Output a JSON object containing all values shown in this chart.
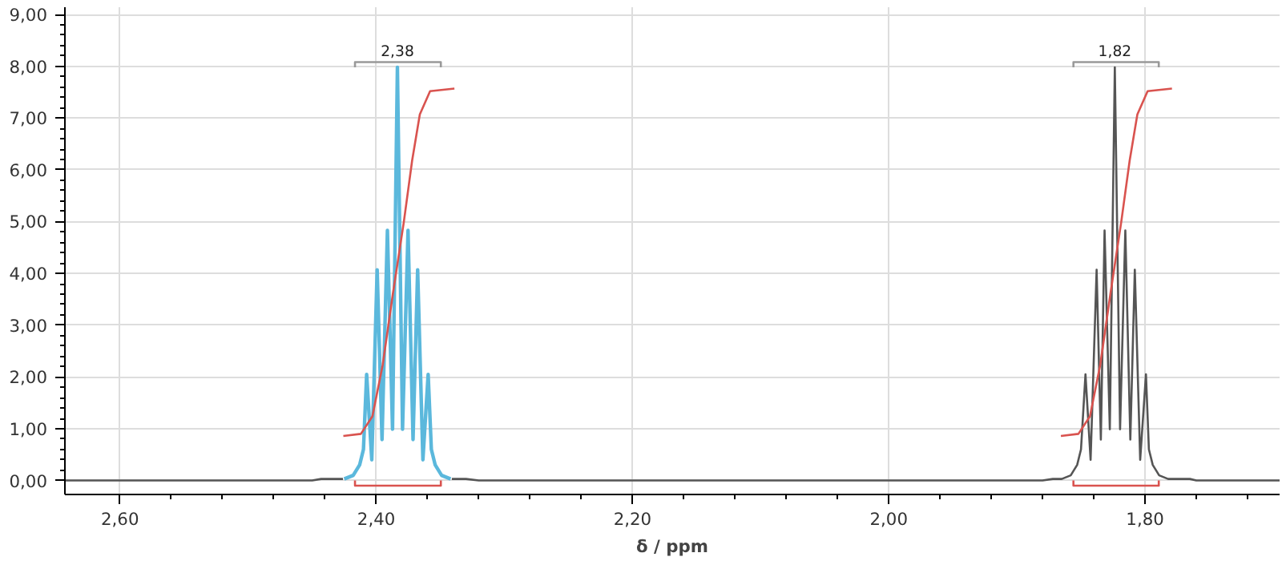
{
  "chart_data": {
    "type": "line",
    "xlabel": "δ / ppm",
    "xlim": [
      2.643,
      1.695
    ],
    "ylim": [
      -0.27,
      9.14
    ],
    "xticks": [
      {
        "value": 2.6,
        "label": "2,60"
      },
      {
        "value": 2.56,
        "label": null
      },
      {
        "value": 2.52,
        "label": null
      },
      {
        "value": 2.48,
        "label": null
      },
      {
        "value": 2.44,
        "label": null
      },
      {
        "value": 2.4,
        "label": "2,40"
      },
      {
        "value": 2.36,
        "label": null
      },
      {
        "value": 2.32,
        "label": null
      },
      {
        "value": 2.28,
        "label": null
      },
      {
        "value": 2.24,
        "label": null
      },
      {
        "value": 2.2,
        "label": "2,20"
      },
      {
        "value": 2.16,
        "label": null
      },
      {
        "value": 2.12,
        "label": null
      },
      {
        "value": 2.08,
        "label": null
      },
      {
        "value": 2.04,
        "label": null
      },
      {
        "value": 2.0,
        "label": "2,00"
      },
      {
        "value": 1.96,
        "label": null
      },
      {
        "value": 1.92,
        "label": null
      },
      {
        "value": 1.88,
        "label": null
      },
      {
        "value": 1.84,
        "label": null
      },
      {
        "value": 1.8,
        "label": "1,80"
      },
      {
        "value": 1.76,
        "label": null
      },
      {
        "value": 1.72,
        "label": null
      }
    ],
    "yticks": [
      {
        "value": 0,
        "label": "0,00"
      },
      {
        "value": 0.2,
        "label": null
      },
      {
        "value": 0.4,
        "label": null
      },
      {
        "value": 0.6,
        "label": null
      },
      {
        "value": 0.8,
        "label": null
      },
      {
        "value": 1,
        "label": "1,00"
      },
      {
        "value": 1.2,
        "label": null
      },
      {
        "value": 1.4,
        "label": null
      },
      {
        "value": 1.6,
        "label": null
      },
      {
        "value": 1.8,
        "label": null
      },
      {
        "value": 2,
        "label": "2,00"
      },
      {
        "value": 2.2,
        "label": null
      },
      {
        "value": 2.4,
        "label": null
      },
      {
        "value": 2.6,
        "label": null
      },
      {
        "value": 2.8,
        "label": null
      },
      {
        "value": 3,
        "label": "3,00"
      },
      {
        "value": 3.2,
        "label": null
      },
      {
        "value": 3.4,
        "label": null
      },
      {
        "value": 3.6,
        "label": null
      },
      {
        "value": 3.8,
        "label": null
      },
      {
        "value": 4,
        "label": "4,00"
      },
      {
        "value": 4.2,
        "label": null
      },
      {
        "value": 4.4,
        "label": null
      },
      {
        "value": 4.6,
        "label": null
      },
      {
        "value": 4.8,
        "label": null
      },
      {
        "value": 5,
        "label": "5,00"
      },
      {
        "value": 5.2,
        "label": null
      },
      {
        "value": 5.4,
        "label": null
      },
      {
        "value": 5.6,
        "label": null
      },
      {
        "value": 5.8,
        "label": null
      },
      {
        "value": 6,
        "label": "6,00"
      },
      {
        "value": 6.2,
        "label": null
      },
      {
        "value": 6.4,
        "label": null
      },
      {
        "value": 6.6,
        "label": null
      },
      {
        "value": 6.8,
        "label": null
      },
      {
        "value": 7,
        "label": "7,00"
      },
      {
        "value": 7.2,
        "label": null
      },
      {
        "value": 7.4,
        "label": null
      },
      {
        "value": 7.6,
        "label": null
      },
      {
        "value": 7.8,
        "label": null
      },
      {
        "value": 8,
        "label": "8,00"
      },
      {
        "value": 8.2,
        "label": null
      },
      {
        "value": 8.4,
        "label": null
      },
      {
        "value": 8.6,
        "label": null
      },
      {
        "value": 8.8,
        "label": null
      },
      {
        "value": 9,
        "label": "9,00"
      }
    ],
    "grid": true,
    "line_style": "solid",
    "marker": "none",
    "series": [
      {
        "color": "#555555",
        "x": [
          2.643,
          2.5,
          2.45,
          2.443,
          2.435,
          2.426,
          null,
          2.341,
          2.33,
          2.32,
          2.2,
          2.0,
          1.88,
          1.872,
          1.865,
          1.858,
          1.853,
          1.85,
          1.8465,
          1.8425,
          1.8378,
          1.8345,
          1.8316,
          1.8275,
          1.8236,
          1.8195,
          1.8154,
          1.8115,
          1.808,
          1.8038,
          1.7993,
          1.797,
          1.794,
          1.789,
          1.782,
          1.775,
          1.765,
          1.76,
          1.695
        ],
        "values": [
          0,
          0,
          0,
          0.03,
          0.03,
          0.03,
          null,
          0.03,
          0.03,
          0,
          0,
          0,
          0,
          0.03,
          0.03,
          0.1,
          0.3,
          0.6,
          2.05,
          0.4,
          4.07,
          0.79,
          4.83,
          0.99,
          7.98,
          0.99,
          4.83,
          0.79,
          4.07,
          0.4,
          2.05,
          0.6,
          0.3,
          0.1,
          0.03,
          0.03,
          0.03,
          0,
          0
        ]
      },
      {
        "color": "#5bb8dc",
        "x": [
          2.425,
          2.418,
          2.413,
          2.41,
          2.4075,
          2.4035,
          2.3993,
          2.3955,
          2.3913,
          2.3873,
          2.3835,
          2.3795,
          2.3752,
          2.3713,
          2.3677,
          2.3636,
          2.3595,
          2.357,
          2.354,
          2.349,
          2.342
        ],
        "values": [
          0.03,
          0.1,
          0.3,
          0.6,
          2.05,
          0.4,
          4.07,
          0.79,
          4.83,
          0.99,
          7.98,
          0.99,
          4.83,
          0.79,
          4.07,
          0.4,
          2.05,
          0.6,
          0.3,
          0.1,
          0.03
        ]
      },
      {
        "color": "#d9534f",
        "x": [
          2.4257,
          2.412,
          2.403,
          2.395,
          2.387,
          2.3785,
          2.372,
          2.366,
          2.358,
          2.339
        ],
        "values": [
          0.86,
          0.9,
          1.24,
          2.23,
          3.61,
          4.99,
          6.18,
          7.07,
          7.52,
          7.57
        ]
      },
      {
        "color": "#d9534f",
        "x": [
          1.8657,
          1.852,
          1.843,
          1.835,
          1.827,
          1.8186,
          1.812,
          1.806,
          1.798,
          1.779
        ],
        "values": [
          0.86,
          0.9,
          1.24,
          2.23,
          3.61,
          4.99,
          6.18,
          7.07,
          7.52,
          7.57
        ]
      },
      {
        "color": "#999999",
        "x": [
          2.4166,
          2.4166,
          2.3496,
          2.3496
        ],
        "values": [
          7.98,
          8.08,
          8.08,
          7.98
        ]
      },
      {
        "color": "#999999",
        "x": [
          1.8559,
          1.8559,
          1.7893,
          1.7893
        ],
        "values": [
          7.98,
          8.08,
          8.08,
          7.98
        ]
      },
      {
        "color": "#d9534f",
        "x": [
          2.4166,
          2.4166,
          2.3496,
          2.3496
        ],
        "values": [
          0.0,
          -0.1,
          -0.1,
          0.0
        ]
      },
      {
        "color": "#d9534f",
        "x": [
          1.8559,
          1.8559,
          1.7893,
          1.7893
        ],
        "values": [
          0.0,
          -0.1,
          -0.1,
          0.0
        ]
      }
    ],
    "annotations": [
      {
        "text": "2,38",
        "x": 2.3835,
        "y": 8.16
      },
      {
        "text": "1,82",
        "x": 1.8236,
        "y": 8.16
      }
    ]
  }
}
